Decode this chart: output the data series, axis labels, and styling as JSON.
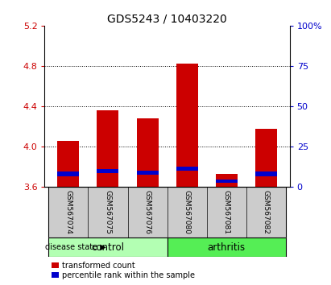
{
  "title": "GDS5243 / 10403220",
  "samples": [
    "GSM567074",
    "GSM567075",
    "GSM567076",
    "GSM567080",
    "GSM567081",
    "GSM567082"
  ],
  "groups": [
    {
      "label": "control",
      "indices": [
        0,
        1,
        2
      ],
      "color": "#b3ffb3"
    },
    {
      "label": "arthritis",
      "indices": [
        3,
        4,
        5
      ],
      "color": "#55ee55"
    }
  ],
  "y_min": 3.6,
  "y_max": 5.2,
  "y_ticks": [
    3.6,
    4.0,
    4.4,
    4.8,
    5.2
  ],
  "y2_ticks": [
    0,
    25,
    50,
    75,
    100
  ],
  "y2_labels": [
    "0",
    "25",
    "50",
    "75",
    "100%"
  ],
  "red_tops": [
    4.06,
    4.36,
    4.28,
    4.82,
    3.73,
    4.18
  ],
  "blue_bottoms": [
    3.71,
    3.74,
    3.72,
    3.76,
    3.64,
    3.71
  ],
  "blue_tops": [
    3.752,
    3.782,
    3.762,
    3.8,
    3.672,
    3.752
  ],
  "bar_width": 0.55,
  "bar_color": "#cc0000",
  "blue_color": "#0000cc",
  "baseline": 3.6,
  "label_area_color": "#cccccc",
  "disease_state_label": "disease state",
  "legend_red": "transformed count",
  "legend_blue": "percentile rank within the sample",
  "left_axis_color": "#cc0000",
  "right_axis_color": "#0000cc",
  "title_fontsize": 10,
  "tick_fontsize": 8,
  "sample_fontsize": 6.5,
  "group_fontsize": 8.5
}
